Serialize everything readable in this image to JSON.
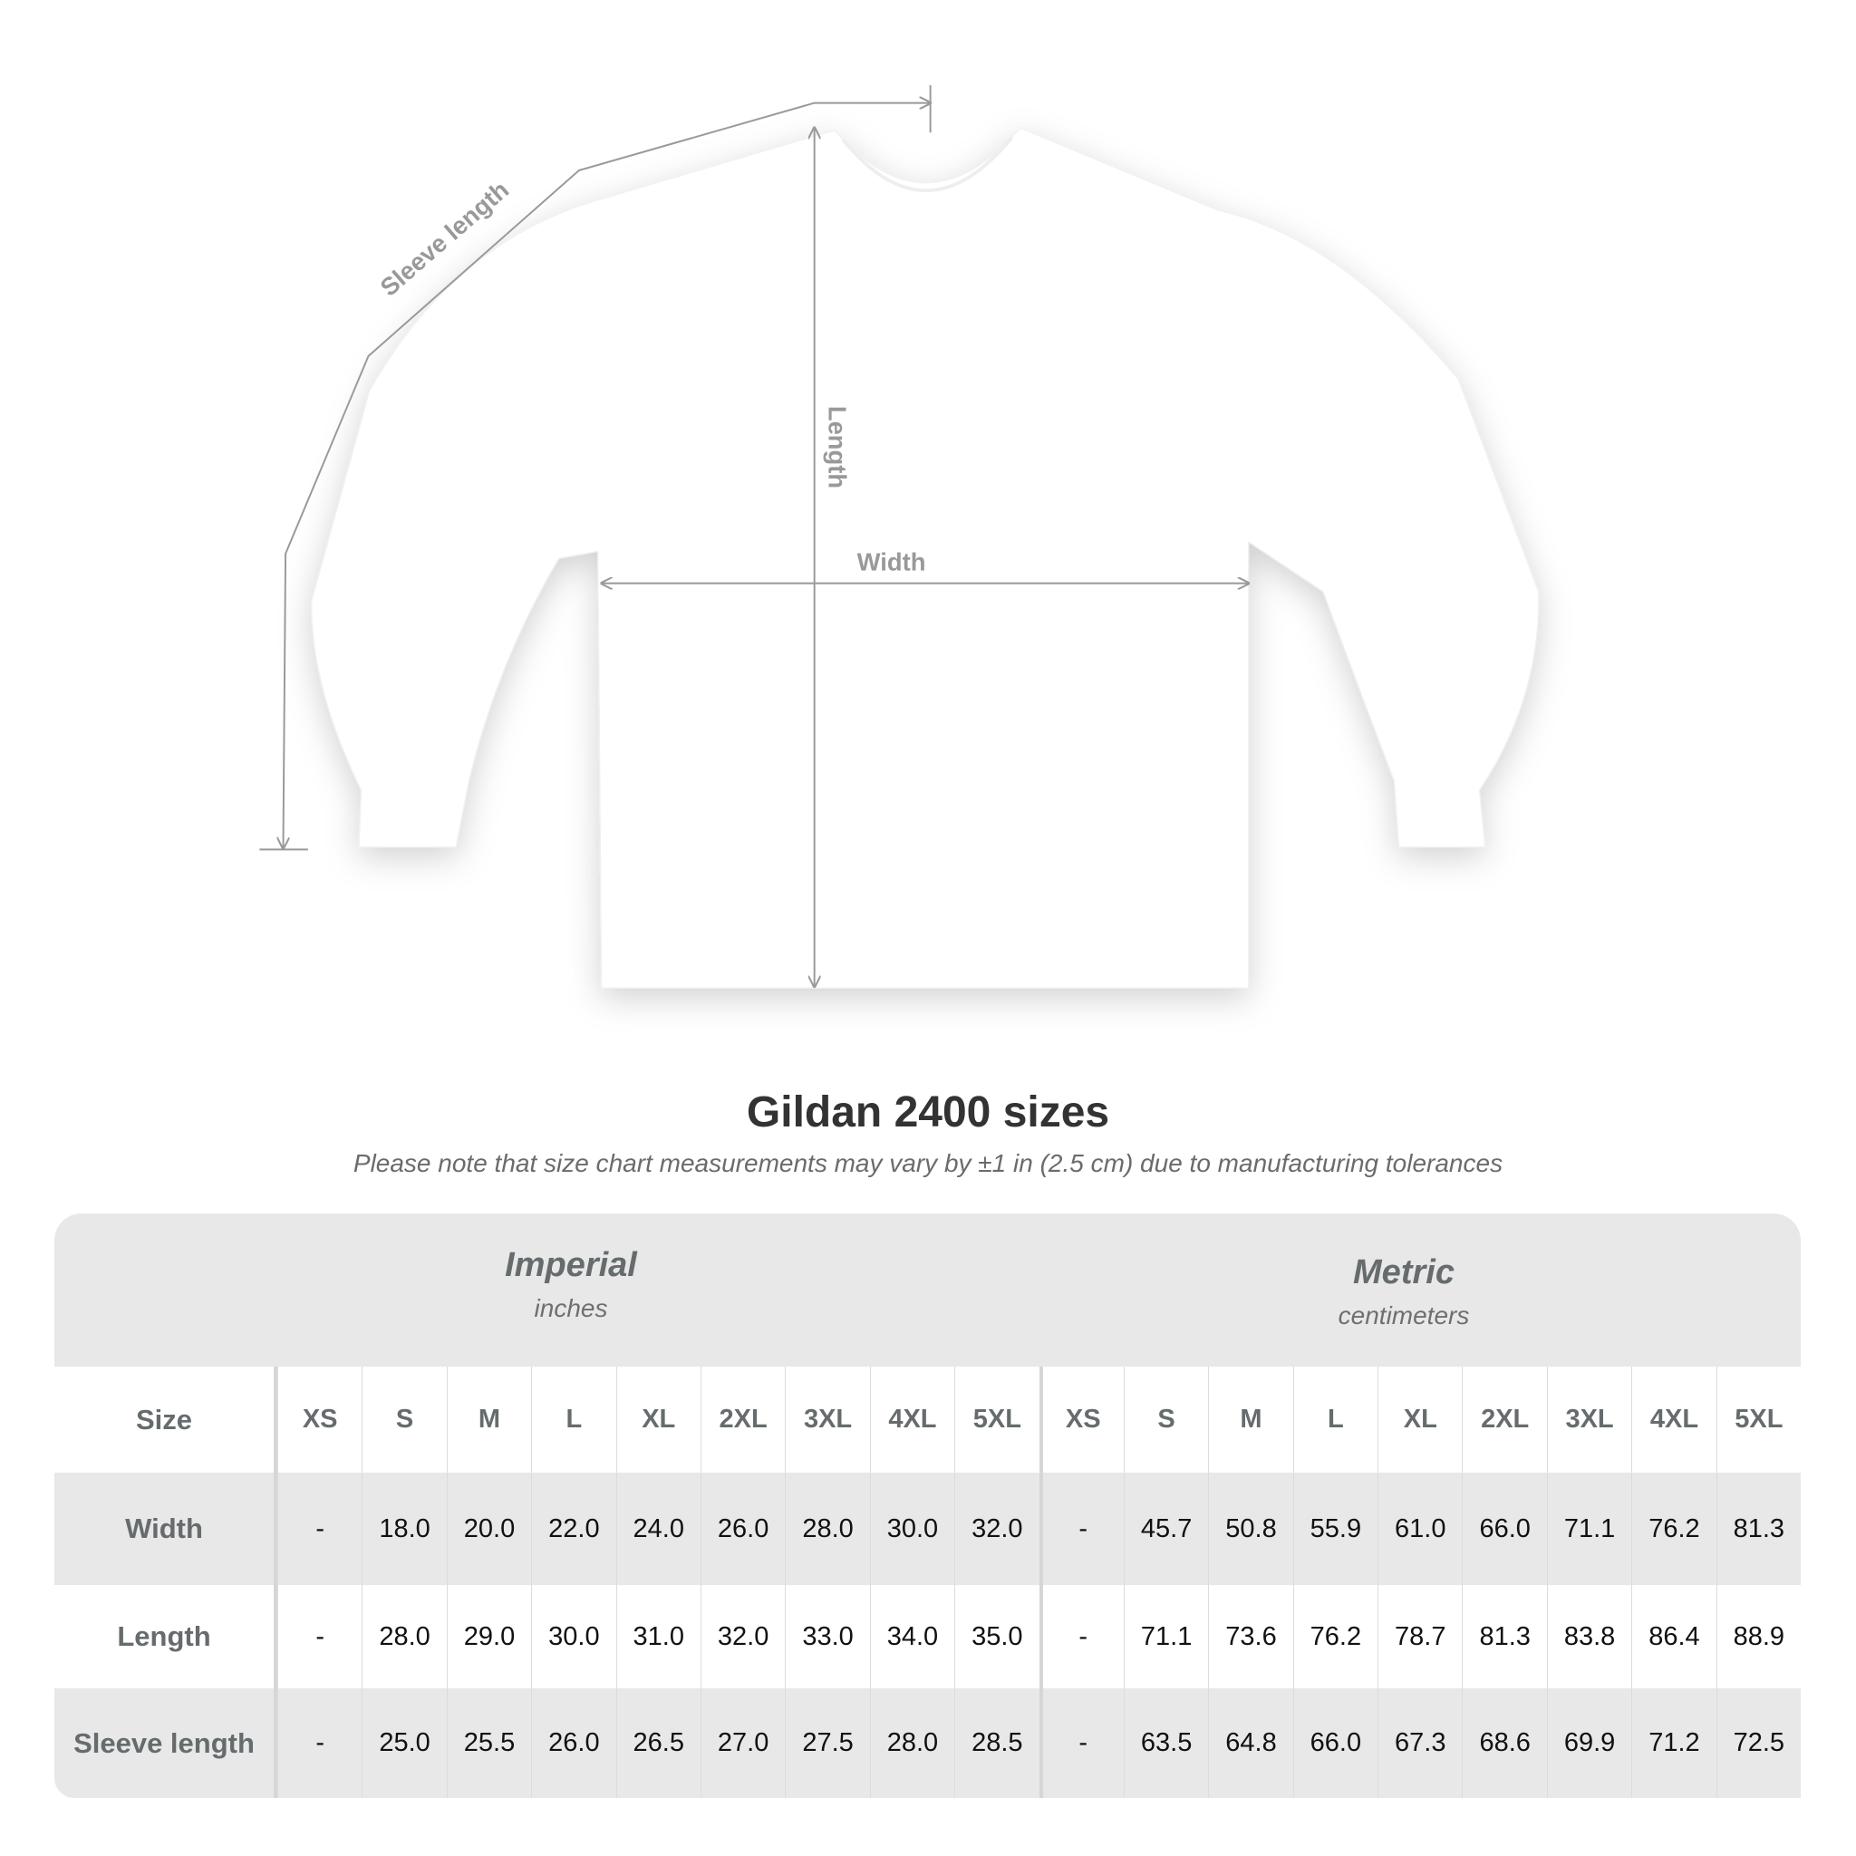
{
  "diagram": {
    "labels": {
      "sleeve": "Sleeve length",
      "length": "Length",
      "width": "Width"
    },
    "garment_color": "#ffffff",
    "line_color": "#999999"
  },
  "title": "Gildan 2400 sizes",
  "subtitle": "Please note that size chart measurements may vary by ±1 in (2.5 cm) due to manufacturing tolerances",
  "table": {
    "imperial": {
      "name": "Imperial",
      "unit": "inches"
    },
    "metric": {
      "name": "Metric",
      "unit": "centimeters"
    },
    "size_label": "Size",
    "sizes": [
      "XS",
      "S",
      "M",
      "L",
      "XL",
      "2XL",
      "3XL",
      "4XL",
      "5XL"
    ],
    "rows": [
      {
        "label": "Width",
        "imperial": [
          "-",
          "18.0",
          "20.0",
          "22.0",
          "24.0",
          "26.0",
          "28.0",
          "30.0",
          "32.0"
        ],
        "metric": [
          "-",
          "45.7",
          "50.8",
          "55.9",
          "61.0",
          "66.0",
          "71.1",
          "76.2",
          "81.3"
        ]
      },
      {
        "label": "Length",
        "imperial": [
          "-",
          "28.0",
          "29.0",
          "30.0",
          "31.0",
          "32.0",
          "33.0",
          "34.0",
          "35.0"
        ],
        "metric": [
          "-",
          "71.1",
          "73.6",
          "76.2",
          "78.7",
          "81.3",
          "83.8",
          "86.4",
          "88.9"
        ]
      },
      {
        "label": "Sleeve length",
        "imperial": [
          "-",
          "25.0",
          "25.5",
          "26.0",
          "26.5",
          "27.0",
          "27.5",
          "28.0",
          "28.5"
        ],
        "metric": [
          "-",
          "63.5",
          "64.8",
          "66.0",
          "67.3",
          "68.6",
          "69.9",
          "71.2",
          "72.5"
        ]
      }
    ]
  }
}
